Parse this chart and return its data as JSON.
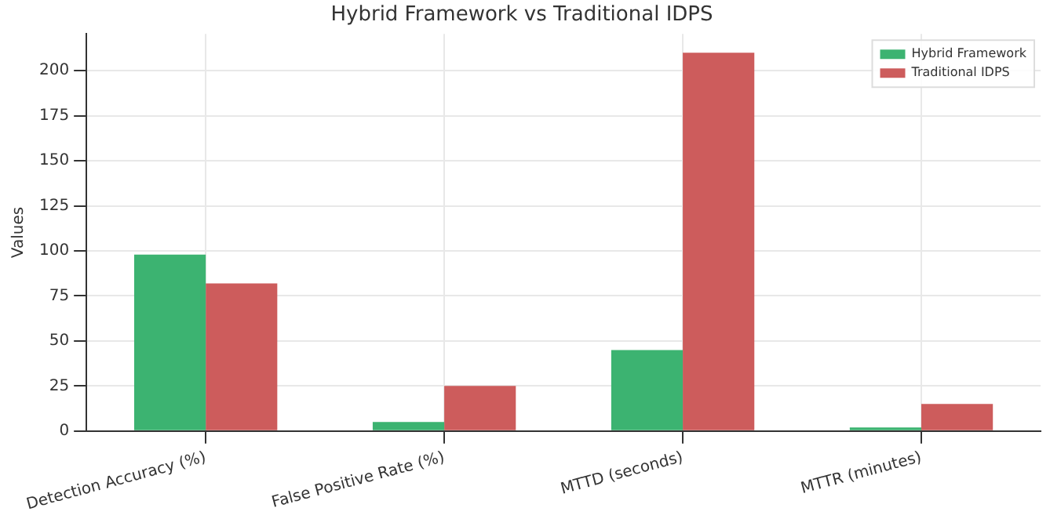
{
  "chart_data": {
    "type": "bar",
    "title": "Hybrid Framework vs Traditional IDPS",
    "ylabel": "Values",
    "categories": [
      "Detection Accuracy (%)",
      "False Positive Rate (%)",
      "MTTD (seconds)",
      "MTTR (minutes)"
    ],
    "series": [
      {
        "name": "Hybrid Framework",
        "color": "#3cb371",
        "values": [
          98,
          5,
          45,
          2
        ]
      },
      {
        "name": "Traditional IDPS",
        "color": "#cd5c5c",
        "values": [
          82,
          25,
          210,
          15
        ]
      }
    ],
    "ylim": [
      0,
      220.5
    ],
    "yticks": [
      0,
      25,
      50,
      75,
      100,
      125,
      150,
      175,
      200
    ],
    "grid": true,
    "legend": "top right"
  }
}
